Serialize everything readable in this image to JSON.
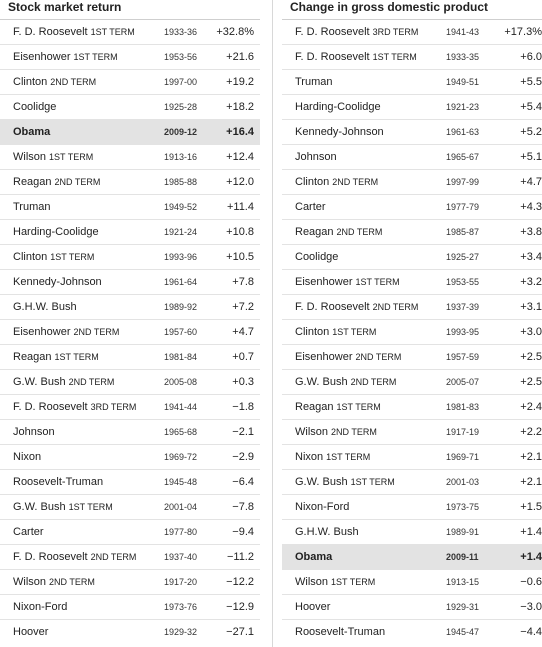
{
  "left": {
    "title": "Stock market return",
    "rows": [
      {
        "name": "F. D. Roosevelt",
        "term": "1ST TERM",
        "years": "1933-36",
        "value": "+32.8%"
      },
      {
        "name": "Eisenhower",
        "term": "1ST TERM",
        "years": "1953-56",
        "value": "+21.6"
      },
      {
        "name": "Clinton",
        "term": "2ND TERM",
        "years": "1997-00",
        "value": "+19.2"
      },
      {
        "name": "Coolidge",
        "term": "",
        "years": "1925-28",
        "value": "+18.2"
      },
      {
        "name": "Obama",
        "term": "",
        "years": "2009-12",
        "value": "+16.4",
        "highlight": true
      },
      {
        "name": "Wilson",
        "term": "1ST TERM",
        "years": "1913-16",
        "value": "+12.4"
      },
      {
        "name": "Reagan",
        "term": "2ND TERM",
        "years": "1985-88",
        "value": "+12.0"
      },
      {
        "name": "Truman",
        "term": "",
        "years": "1949-52",
        "value": "+11.4"
      },
      {
        "name": "Harding-Coolidge",
        "term": "",
        "years": "1921-24",
        "value": "+10.8"
      },
      {
        "name": "Clinton",
        "term": "1ST TERM",
        "years": "1993-96",
        "value": "+10.5"
      },
      {
        "name": "Kennedy-Johnson",
        "term": "",
        "years": "1961-64",
        "value": "+7.8"
      },
      {
        "name": "G.H.W. Bush",
        "term": "",
        "years": "1989-92",
        "value": "+7.2"
      },
      {
        "name": "Eisenhower",
        "term": "2ND TERM",
        "years": "1957-60",
        "value": "+4.7"
      },
      {
        "name": "Reagan",
        "term": "1ST TERM",
        "years": "1981-84",
        "value": "+0.7"
      },
      {
        "name": "G.W. Bush",
        "term": "2ND TERM",
        "years": "2005-08",
        "value": "+0.3"
      },
      {
        "name": "F. D. Roosevelt",
        "term": "3RD TERM",
        "years": "1941-44",
        "value": "−1.8"
      },
      {
        "name": "Johnson",
        "term": "",
        "years": "1965-68",
        "value": "−2.1"
      },
      {
        "name": "Nixon",
        "term": "",
        "years": "1969-72",
        "value": "−2.9"
      },
      {
        "name": "Roosevelt-Truman",
        "term": "",
        "years": "1945-48",
        "value": "−6.4"
      },
      {
        "name": "G.W. Bush",
        "term": "1ST TERM",
        "years": "2001-04",
        "value": "−7.8"
      },
      {
        "name": "Carter",
        "term": "",
        "years": "1977-80",
        "value": "−9.4"
      },
      {
        "name": "F. D. Roosevelt",
        "term": "2ND TERM",
        "years": "1937-40",
        "value": "−11.2"
      },
      {
        "name": "Wilson",
        "term": "2ND TERM",
        "years": "1917-20",
        "value": "−12.2"
      },
      {
        "name": "Nixon-Ford",
        "term": "",
        "years": "1973-76",
        "value": "−12.9"
      },
      {
        "name": "Hoover",
        "term": "",
        "years": "1929-32",
        "value": "−27.1",
        "cut": true
      }
    ]
  },
  "right": {
    "title": "Change in gross domestic product",
    "rows": [
      {
        "name": "F. D. Roosevelt",
        "term": "3RD TERM",
        "years": "1941-43",
        "value": "+17.3%"
      },
      {
        "name": "F. D. Roosevelt",
        "term": "1ST TERM",
        "years": "1933-35",
        "value": "+6.0"
      },
      {
        "name": "Truman",
        "term": "",
        "years": "1949-51",
        "value": "+5.5"
      },
      {
        "name": "Harding-Coolidge",
        "term": "",
        "years": "1921-23",
        "value": "+5.4"
      },
      {
        "name": "Kennedy-Johnson",
        "term": "",
        "years": "1961-63",
        "value": "+5.2"
      },
      {
        "name": "Johnson",
        "term": "",
        "years": "1965-67",
        "value": "+5.1"
      },
      {
        "name": "Clinton",
        "term": "2ND TERM",
        "years": "1997-99",
        "value": "+4.7"
      },
      {
        "name": "Carter",
        "term": "",
        "years": "1977-79",
        "value": "+4.3"
      },
      {
        "name": "Reagan",
        "term": "2ND TERM",
        "years": "1985-87",
        "value": "+3.8"
      },
      {
        "name": "Coolidge",
        "term": "",
        "years": "1925-27",
        "value": "+3.4"
      },
      {
        "name": "Eisenhower",
        "term": "1ST TERM",
        "years": "1953-55",
        "value": "+3.2"
      },
      {
        "name": "F. D. Roosevelt",
        "term": "2ND TERM",
        "years": "1937-39",
        "value": "+3.1"
      },
      {
        "name": "Clinton",
        "term": "1ST TERM",
        "years": "1993-95",
        "value": "+3.0"
      },
      {
        "name": "Eisenhower",
        "term": "2ND TERM",
        "years": "1957-59",
        "value": "+2.5"
      },
      {
        "name": "G.W. Bush",
        "term": "2ND TERM",
        "years": "2005-07",
        "value": "+2.5"
      },
      {
        "name": "Reagan",
        "term": "1ST TERM",
        "years": "1981-83",
        "value": "+2.4"
      },
      {
        "name": "Wilson",
        "term": "2ND TERM",
        "years": "1917-19",
        "value": "+2.2"
      },
      {
        "name": "Nixon",
        "term": "1ST TERM",
        "years": "1969-71",
        "value": "+2.1"
      },
      {
        "name": "G.W. Bush",
        "term": "1ST TERM",
        "years": "2001-03",
        "value": "+2.1"
      },
      {
        "name": "Nixon-Ford",
        "term": "",
        "years": "1973-75",
        "value": "+1.5"
      },
      {
        "name": "G.H.W. Bush",
        "term": "",
        "years": "1989-91",
        "value": "+1.4"
      },
      {
        "name": "Obama",
        "term": "",
        "years": "2009-11",
        "value": "+1.4",
        "highlight": true
      },
      {
        "name": "Wilson",
        "term": "1ST TERM",
        "years": "1913-15",
        "value": "−0.6"
      },
      {
        "name": "Hoover",
        "term": "",
        "years": "1929-31",
        "value": "−3.0"
      },
      {
        "name": "Roosevelt-Truman",
        "term": "",
        "years": "1945-47",
        "value": "−4.4",
        "cut": true
      }
    ]
  }
}
